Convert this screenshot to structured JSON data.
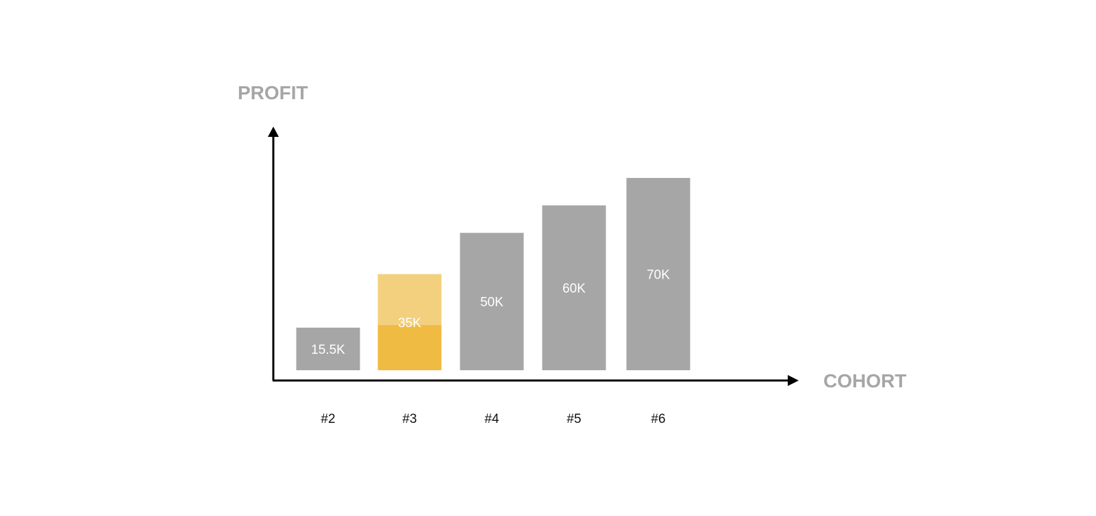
{
  "chart_data": {
    "type": "bar",
    "title": "",
    "xlabel": "COHORT",
    "ylabel": "PROFIT",
    "categories": [
      "#2",
      "#3",
      "#4",
      "#5",
      "#6"
    ],
    "values": [
      15.5,
      35,
      50,
      60,
      70
    ],
    "value_labels": [
      "15.5K",
      "35K",
      "50K",
      "60K",
      "70K"
    ],
    "units": "K",
    "highlight": {
      "category": "#3",
      "actual_value": 16.5,
      "projected_value": 35
    },
    "ylim": [
      0,
      80
    ],
    "grid": false,
    "legend": "none",
    "colors": {
      "bar": "#a6a6a6",
      "highlight_actual": "#f0bb42",
      "highlight_projected": "#f3d07d",
      "axis": "#000000",
      "axis_title": "#a6a6a6"
    }
  }
}
